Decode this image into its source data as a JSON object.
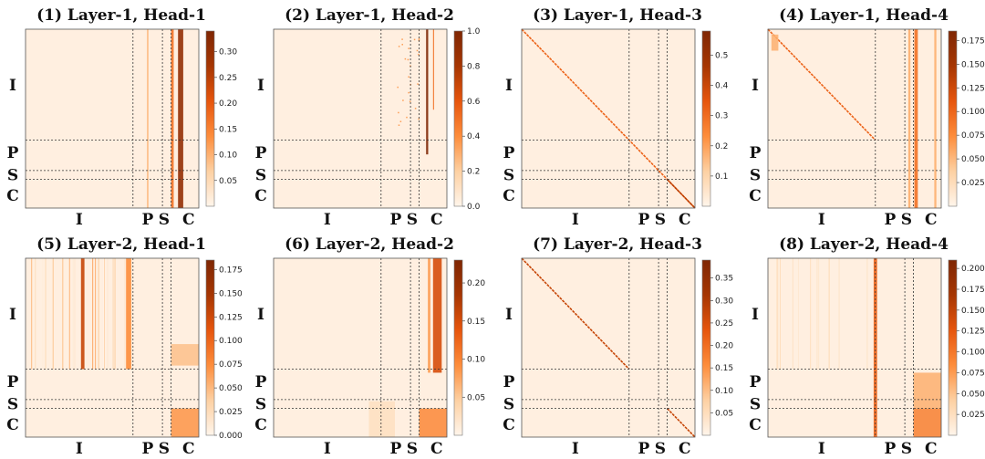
{
  "figure": {
    "colormap": {
      "name": "Oranges",
      "stops": [
        "#fff5eb",
        "#fdd0a2",
        "#fd8d3c",
        "#e6550d",
        "#a63603",
        "#7f2704"
      ]
    },
    "boundary_style": "dashed"
  },
  "chart_data": [
    {
      "type": "heatmap",
      "title": "(1) Layer-1, Head-1",
      "row_labels": [
        "I",
        "P",
        "S",
        "C"
      ],
      "col_labels": [
        "I",
        "P",
        "S",
        "C"
      ],
      "segment_fractions": [
        0.62,
        0.17,
        0.05,
        0.16
      ],
      "colorbar": {
        "min": 0.0,
        "max": 0.34,
        "ticks": [
          "0.05",
          "0.10",
          "0.15",
          "0.20",
          "0.25",
          "0.30"
        ],
        "tick_values": [
          0.05,
          0.1,
          0.15,
          0.2,
          0.25,
          0.3
        ]
      },
      "patterns": [
        "strong vertical stripes in S key columns across all query rows"
      ]
    },
    {
      "type": "heatmap",
      "title": "(2) Layer-1, Head-2",
      "row_labels": [
        "I",
        "P",
        "S",
        "C"
      ],
      "col_labels": [
        "I",
        "P",
        "S",
        "C"
      ],
      "segment_fractions": [
        0.62,
        0.17,
        0.05,
        0.16
      ],
      "colorbar": {
        "min": 0.0,
        "max": 1.0,
        "ticks": [
          "0.0",
          "0.2",
          "0.4",
          "0.6",
          "0.8",
          "1.0"
        ],
        "tick_values": [
          0.0,
          0.2,
          0.4,
          0.6,
          0.8,
          1.0
        ]
      },
      "patterns": [
        "thin dark column in S region"
      ]
    },
    {
      "type": "heatmap",
      "title": "(3) Layer-1, Head-3",
      "row_labels": [
        "I",
        "P",
        "S",
        "C"
      ],
      "col_labels": [
        "I",
        "P",
        "S",
        "C"
      ],
      "segment_fractions": [
        0.62,
        0.17,
        0.05,
        0.16
      ],
      "colorbar": {
        "min": 0.0,
        "max": 0.58,
        "ticks": [
          "0.1",
          "0.2",
          "0.3",
          "0.4",
          "0.5"
        ],
        "tick_values": [
          0.1,
          0.2,
          0.3,
          0.4,
          0.5
        ]
      },
      "patterns": [
        "diagonal attention across whole sequence"
      ]
    },
    {
      "type": "heatmap",
      "title": "(4) Layer-1, Head-4",
      "row_labels": [
        "I",
        "P",
        "S",
        "C"
      ],
      "col_labels": [
        "I",
        "P",
        "S",
        "C"
      ],
      "segment_fractions": [
        0.62,
        0.17,
        0.05,
        0.16
      ],
      "colorbar": {
        "min": 0.0,
        "max": 0.185,
        "ticks": [
          "0.025",
          "0.050",
          "0.075",
          "0.100",
          "0.125",
          "0.150",
          "0.175"
        ],
        "tick_values": [
          0.025,
          0.05,
          0.075,
          0.1,
          0.125,
          0.15,
          0.175
        ]
      },
      "patterns": [
        "diagonal in I block",
        "vertical stripes in P and S columns"
      ]
    },
    {
      "type": "heatmap",
      "title": "(5) Layer-2, Head-1",
      "row_labels": [
        "I",
        "P",
        "S",
        "C"
      ],
      "col_labels": [
        "I",
        "P",
        "S",
        "C"
      ],
      "segment_fractions": [
        0.62,
        0.17,
        0.05,
        0.16
      ],
      "colorbar": {
        "min": 0.0,
        "max": 0.185,
        "ticks": [
          "0.000",
          "0.025",
          "0.050",
          "0.075",
          "0.100",
          "0.125",
          "0.150",
          "0.175"
        ],
        "tick_values": [
          0.0,
          0.025,
          0.05,
          0.075,
          0.1,
          0.125,
          0.15,
          0.175
        ]
      },
      "patterns": [
        "vertical stripes within I columns for I queries",
        "C-to-C block"
      ]
    },
    {
      "type": "heatmap",
      "title": "(6) Layer-2, Head-2",
      "row_labels": [
        "I",
        "P",
        "S",
        "C"
      ],
      "col_labels": [
        "I",
        "P",
        "S",
        "C"
      ],
      "segment_fractions": [
        0.62,
        0.17,
        0.05,
        0.16
      ],
      "colorbar": {
        "min": 0.0,
        "max": 0.23,
        "ticks": [
          "0.05",
          "0.10",
          "0.15",
          "0.20"
        ],
        "tick_values": [
          0.05,
          0.1,
          0.15,
          0.2
        ]
      },
      "patterns": [
        "I queries attend to C columns",
        "C-to-C block"
      ]
    },
    {
      "type": "heatmap",
      "title": "(7) Layer-2, Head-3",
      "row_labels": [
        "I",
        "P",
        "S",
        "C"
      ],
      "col_labels": [
        "I",
        "P",
        "S",
        "C"
      ],
      "segment_fractions": [
        0.62,
        0.17,
        0.05,
        0.16
      ],
      "colorbar": {
        "min": 0.0,
        "max": 0.39,
        "ticks": [
          "0.05",
          "0.10",
          "0.15",
          "0.20",
          "0.25",
          "0.30",
          "0.35"
        ],
        "tick_values": [
          0.05,
          0.1,
          0.15,
          0.2,
          0.25,
          0.3,
          0.35
        ]
      },
      "patterns": [
        "diagonal in I block",
        "diagonal in C block"
      ]
    },
    {
      "type": "heatmap",
      "title": "(8) Layer-2, Head-4",
      "row_labels": [
        "I",
        "P",
        "S",
        "C"
      ],
      "col_labels": [
        "I",
        "P",
        "S",
        "C"
      ],
      "segment_fractions": [
        0.62,
        0.17,
        0.05,
        0.16
      ],
      "colorbar": {
        "min": 0.0,
        "max": 0.21,
        "ticks": [
          "0.025",
          "0.050",
          "0.075",
          "0.100",
          "0.125",
          "0.150",
          "0.175",
          "0.200"
        ],
        "tick_values": [
          0.025,
          0.05,
          0.075,
          0.1,
          0.125,
          0.15,
          0.175,
          0.2
        ]
      },
      "patterns": [
        "vertical stripe at I/P boundary",
        "P,S,C queries to C block"
      ]
    }
  ]
}
